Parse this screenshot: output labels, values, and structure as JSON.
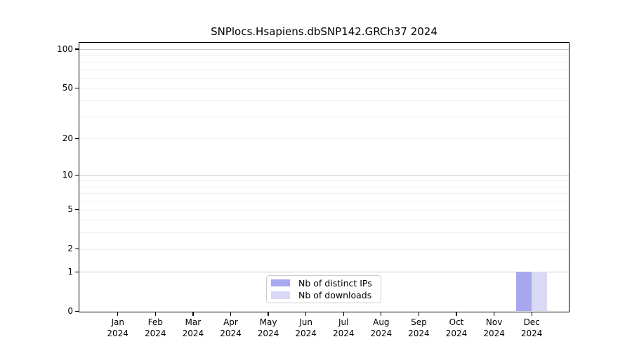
{
  "chart_data": {
    "type": "bar",
    "title": "SNPlocs.Hsapiens.dbSNP142.GRCh37 2024",
    "x_ticks": [
      {
        "month": "Jan",
        "year": "2024"
      },
      {
        "month": "Feb",
        "year": "2024"
      },
      {
        "month": "Mar",
        "year": "2024"
      },
      {
        "month": "Apr",
        "year": "2024"
      },
      {
        "month": "May",
        "year": "2024"
      },
      {
        "month": "Jun",
        "year": "2024"
      },
      {
        "month": "Jul",
        "year": "2024"
      },
      {
        "month": "Aug",
        "year": "2024"
      },
      {
        "month": "Sep",
        "year": "2024"
      },
      {
        "month": "Oct",
        "year": "2024"
      },
      {
        "month": "Nov",
        "year": "2024"
      },
      {
        "month": "Dec",
        "year": "2024"
      }
    ],
    "series": [
      {
        "name": "Nb of distinct IPs",
        "color": "#a8a8f0",
        "values": [
          0,
          0,
          0,
          0,
          0,
          0,
          0,
          0,
          0,
          0,
          0,
          1
        ]
      },
      {
        "name": "Nb of downloads",
        "color": "#d9d9f7",
        "values": [
          0,
          0,
          0,
          0,
          0,
          0,
          0,
          0,
          0,
          0,
          0,
          1
        ]
      }
    ],
    "y_axis": {
      "scale": "log1p",
      "ticks": [
        0,
        1,
        2,
        5,
        10,
        20,
        50,
        100
      ],
      "range_max": 111
    },
    "grid": {
      "major_values": [
        1,
        10,
        100
      ],
      "minor_values": [
        2,
        3,
        4,
        5,
        6,
        7,
        8,
        9,
        20,
        30,
        40,
        50,
        60,
        70,
        80,
        90
      ],
      "major_color": "#cccccc",
      "minor_color": "#f0f0f0"
    },
    "legend_position": "bottom-center"
  }
}
